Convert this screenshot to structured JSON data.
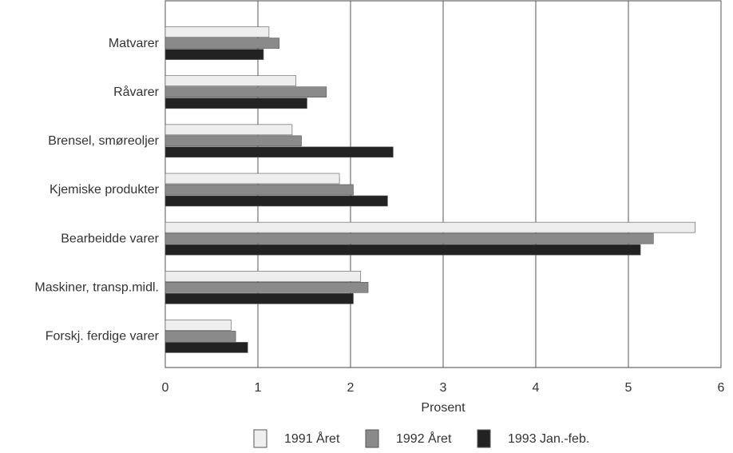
{
  "chart_data": {
    "type": "hbar",
    "x_label": "Prosent",
    "categories": [
      "Matvarer",
      "Råvarer",
      "Brensel, smøreoljer",
      "Kjemiske produkter",
      "Bearbeidde varer",
      "Maskiner, transp.midl.",
      "Forskj. ferdige varer"
    ],
    "series": [
      {
        "name": "1991 Året",
        "color": "#eeeeee",
        "values": [
          1.12,
          1.41,
          1.37,
          1.88,
          5.72,
          2.11,
          0.71
        ]
      },
      {
        "name": "1992 Året",
        "color": "#8a8a8a",
        "values": [
          1.23,
          1.74,
          1.47,
          2.03,
          5.27,
          2.19,
          0.76
        ]
      },
      {
        "name": "1993 Jan.-feb.",
        "color": "#222222",
        "values": [
          1.06,
          1.53,
          2.46,
          2.4,
          5.13,
          2.03,
          0.89
        ]
      }
    ],
    "xlim": [
      0,
      6
    ],
    "xticks": [
      0,
      1,
      2,
      3,
      4,
      5,
      6
    ],
    "grid": true
  }
}
